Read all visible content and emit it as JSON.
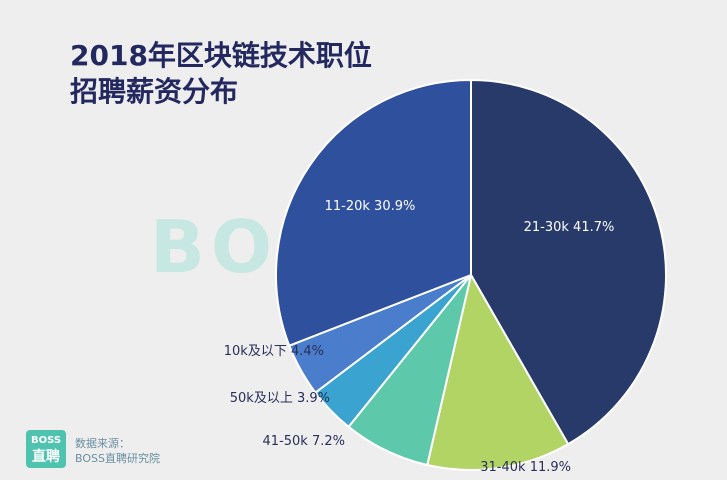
{
  "title_lines": [
    "2018年区块链技术职位",
    "招聘薪资分布"
  ],
  "watermark": "BOSS直聘",
  "footer": {
    "logo_line1": "BOSS",
    "logo_line2": "直聘",
    "source_label": "数据来源：",
    "source_name": "BOSS直聘研究院"
  },
  "chart_data": {
    "type": "pie",
    "title": "2018年区块链技术职位招聘薪资分布",
    "slices": [
      {
        "label": "21-30k",
        "value": 41.7,
        "display": "41.7%",
        "color": "#273a6a"
      },
      {
        "label": "31-40k",
        "value": 11.9,
        "display": "11.9%",
        "color": "#b1d465"
      },
      {
        "label": "41-50k",
        "value": 7.2,
        "display": "7.2%",
        "color": "#5ec9aa"
      },
      {
        "label": "50k及以上",
        "value": 3.9,
        "display": "3.9%",
        "color": "#3aa3cf"
      },
      {
        "label": "10k及以下",
        "value": 4.4,
        "display": "4.4%",
        "color": "#4a7dcb"
      },
      {
        "label": "11-20k",
        "value": 30.9,
        "display": "30.9%",
        "color": "#2f509c"
      }
    ]
  }
}
